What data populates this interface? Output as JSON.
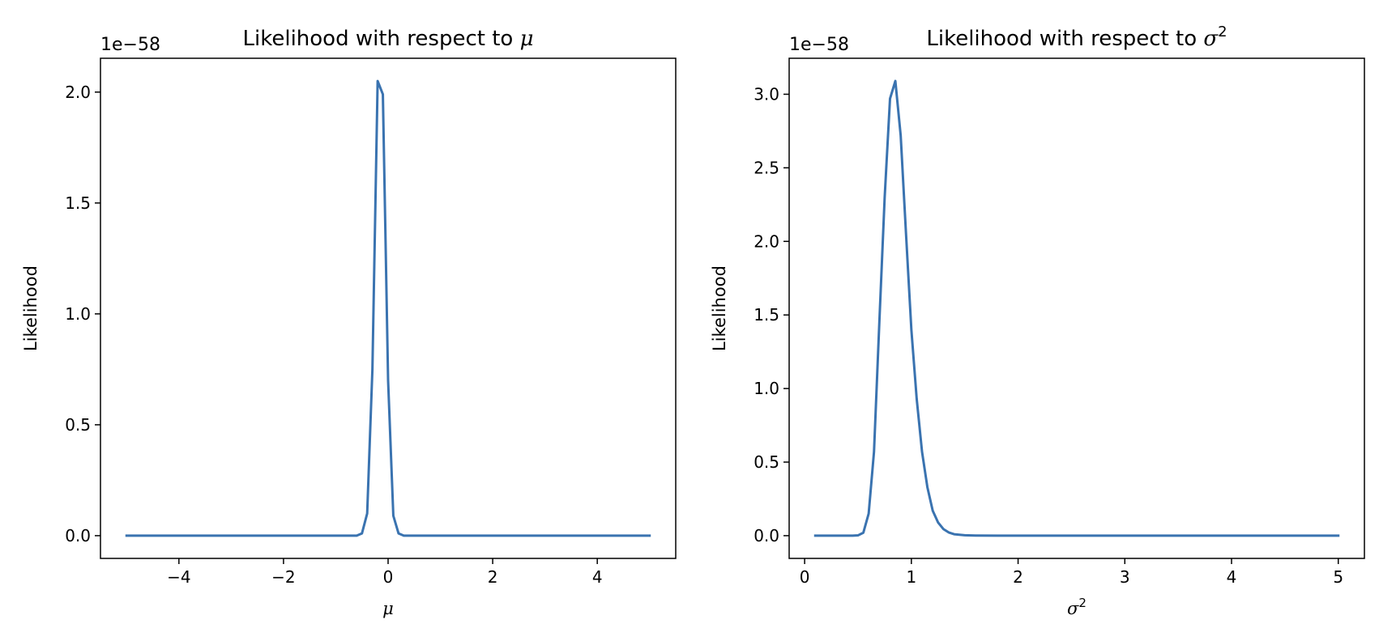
{
  "chart_data": [
    {
      "type": "line",
      "title_prefix": "Likelihood with respect to ",
      "title_symbol": "μ",
      "title_sup": "",
      "xlabel_symbol": "μ",
      "xlabel_sup": "",
      "ylabel": "Likelihood",
      "offset_text": "1e−58",
      "xlim": [
        -5.5,
        5.5
      ],
      "ylim": [
        -0.1025,
        2.1525
      ],
      "xticks": [
        -4,
        -2,
        0,
        2,
        4
      ],
      "xtick_labels": [
        "−4",
        "−2",
        "0",
        "2",
        "4"
      ],
      "yticks": [
        0.0,
        0.5,
        1.0,
        1.5,
        2.0
      ],
      "ytick_labels": [
        "0.0",
        "0.5",
        "1.0",
        "1.5",
        "2.0"
      ],
      "color": "#3a73b0",
      "series": [
        {
          "x": [
            -5.0,
            -0.6,
            -0.5,
            -0.4,
            -0.3,
            -0.2,
            -0.1,
            0.0,
            0.1,
            0.2,
            0.3,
            0.4,
            5.0
          ],
          "y": [
            0.0,
            0.0,
            0.01,
            0.1,
            0.75,
            2.05,
            1.99,
            0.7,
            0.09,
            0.01,
            0.0,
            0.0,
            0.0
          ]
        }
      ]
    },
    {
      "type": "line",
      "title_prefix": "Likelihood with respect to ",
      "title_symbol": "σ",
      "title_sup": "2",
      "xlabel_symbol": "σ",
      "xlabel_sup": "2",
      "ylabel": "Likelihood",
      "offset_text": "1e−58",
      "xlim": [
        -0.145,
        5.245
      ],
      "ylim": [
        -0.1545,
        3.2445
      ],
      "xticks": [
        0,
        1,
        2,
        3,
        4,
        5
      ],
      "xtick_labels": [
        "0",
        "1",
        "2",
        "3",
        "4",
        "5"
      ],
      "yticks": [
        0.0,
        0.5,
        1.0,
        1.5,
        2.0,
        2.5,
        3.0
      ],
      "ytick_labels": [
        "0.0",
        "0.5",
        "1.0",
        "1.5",
        "2.0",
        "2.5",
        "3.0"
      ],
      "color": "#3a73b0",
      "series": [
        {
          "x": [
            0.1,
            0.45,
            0.5,
            0.55,
            0.6,
            0.65,
            0.7,
            0.75,
            0.8,
            0.85,
            0.9,
            0.95,
            1.0,
            1.05,
            1.1,
            1.15,
            1.2,
            1.25,
            1.3,
            1.35,
            1.4,
            1.5,
            1.6,
            1.8,
            5.0
          ],
          "y": [
            0.0,
            0.0,
            0.002,
            0.02,
            0.15,
            0.57,
            1.45,
            2.3,
            2.97,
            3.09,
            2.72,
            2.05,
            1.4,
            0.93,
            0.57,
            0.33,
            0.17,
            0.09,
            0.045,
            0.022,
            0.01,
            0.003,
            0.001,
            0.0,
            0.0
          ]
        }
      ]
    }
  ]
}
